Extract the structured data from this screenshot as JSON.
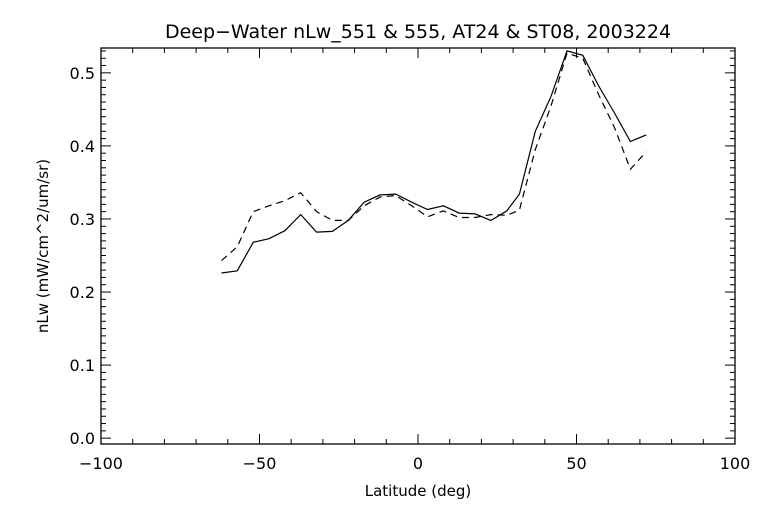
{
  "chart_data": {
    "type": "line",
    "title": "Deep−Water nLw_551 & 555, AT24 & ST08, 2003224",
    "xlabel": "Latitude (deg)",
    "ylabel": "nLw (mW/cm^2/um/sr)",
    "xlim": [
      -100,
      100
    ],
    "ylim": [
      -0.008,
      0.534
    ],
    "grid": false,
    "xticks": [
      -100,
      -50,
      0,
      50,
      100
    ],
    "xtick_labels": [
      "−100",
      "−50",
      "0",
      "50",
      "100"
    ],
    "yticks": [
      0.0,
      0.1,
      0.2,
      0.3,
      0.4,
      0.5
    ],
    "ytick_labels": [
      "0.0",
      "0.1",
      "0.2",
      "0.3",
      "0.4",
      "0.5"
    ],
    "x": [
      -62,
      -57,
      -52,
      -47,
      -42,
      -37,
      -32,
      -27,
      -22,
      -17,
      -12,
      -7,
      -2,
      3,
      8,
      13,
      18,
      23,
      28,
      32,
      37,
      42,
      47,
      52,
      57,
      62,
      67,
      72
    ],
    "series": [
      {
        "name": "solid",
        "style": "solid",
        "color": "#000000",
        "values": [
          0.226,
          0.229,
          0.268,
          0.273,
          0.284,
          0.306,
          0.282,
          0.283,
          0.298,
          0.323,
          0.333,
          0.334,
          0.323,
          0.313,
          0.318,
          0.308,
          0.307,
          0.298,
          0.311,
          0.334,
          0.42,
          0.468,
          0.53,
          0.524,
          0.482,
          0.445,
          0.406,
          0.415
        ]
      },
      {
        "name": "dashed",
        "style": "dashed",
        "color": "#000000",
        "values": [
          0.243,
          0.262,
          0.31,
          0.318,
          0.325,
          0.336,
          0.31,
          0.298,
          0.298,
          0.318,
          0.33,
          0.332,
          0.318,
          0.303,
          0.311,
          0.302,
          0.302,
          0.306,
          0.305,
          0.312,
          0.395,
          0.455,
          0.527,
          0.52,
          0.47,
          0.425,
          0.368,
          0.392
        ]
      }
    ]
  }
}
